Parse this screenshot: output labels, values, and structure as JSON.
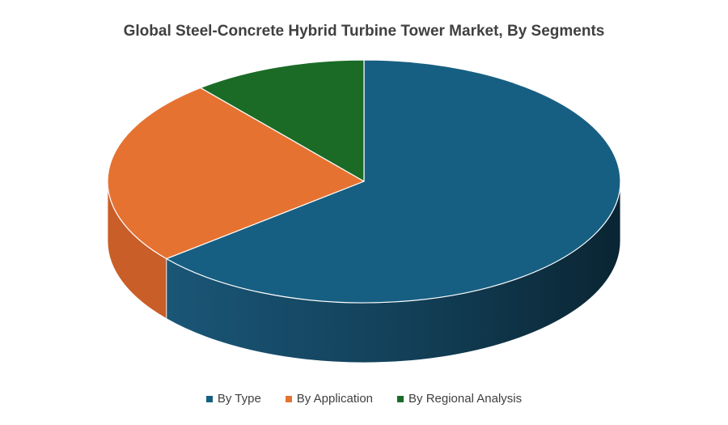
{
  "chart_data": {
    "type": "pie",
    "style": "3d",
    "title": "Global Steel-Concrete Hybrid Turbine Tower Market, By Segments",
    "categories": [
      "By Type",
      "By Application",
      "By Regional Analysis"
    ],
    "values": [
      64,
      25,
      11
    ],
    "colors": [
      "#175F82",
      "#E67232",
      "#1B6B26"
    ],
    "side_colors": [
      "#0F4560",
      "#C95E28",
      "#145019"
    ],
    "legend_position": "bottom"
  }
}
